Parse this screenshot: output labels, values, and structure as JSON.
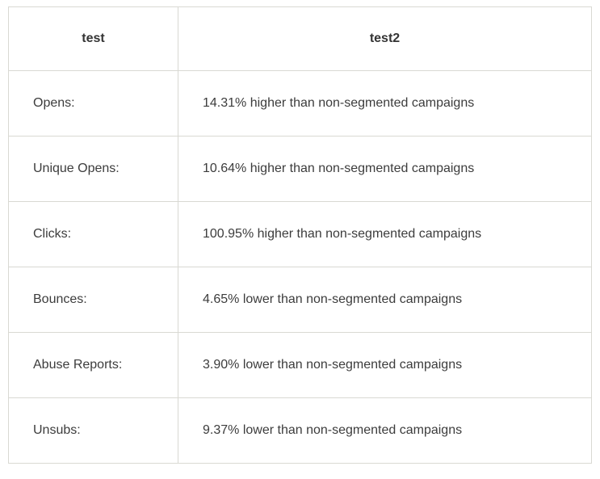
{
  "table": {
    "columns": [
      {
        "label": "test"
      },
      {
        "label": "test2"
      }
    ],
    "rows": [
      {
        "metric": "Opens:",
        "value": "14.31% higher than non-segmented campaigns"
      },
      {
        "metric": "Unique Opens:",
        "value": "10.64% higher than non-segmented campaigns"
      },
      {
        "metric": "Clicks:",
        "value": "100.95% higher than non-segmented campaigns"
      },
      {
        "metric": "Bounces:",
        "value": "4.65% lower than non-segmented campaigns"
      },
      {
        "metric": "Abuse Reports:",
        "value": "3.90% lower than non-segmented campaigns"
      },
      {
        "metric": "Unsubs:",
        "value": "9.37% lower than non-segmented campaigns"
      }
    ]
  },
  "colors": {
    "border": "#d9d9d3",
    "text": "#3c3c3c",
    "background": "#ffffff"
  },
  "chart_data": {
    "type": "table",
    "columns": [
      "test",
      "test2"
    ],
    "rows": [
      [
        "Opens:",
        "14.31% higher than non-segmented campaigns"
      ],
      [
        "Unique Opens:",
        "10.64% higher than non-segmented campaigns"
      ],
      [
        "Clicks:",
        "100.95% higher than non-segmented campaigns"
      ],
      [
        "Bounces:",
        "4.65% lower than non-segmented campaigns"
      ],
      [
        "Abuse Reports:",
        "3.90% lower than non-segmented campaigns"
      ],
      [
        "Unsubs:",
        "9.37% lower than non-segmented campaigns"
      ]
    ]
  }
}
